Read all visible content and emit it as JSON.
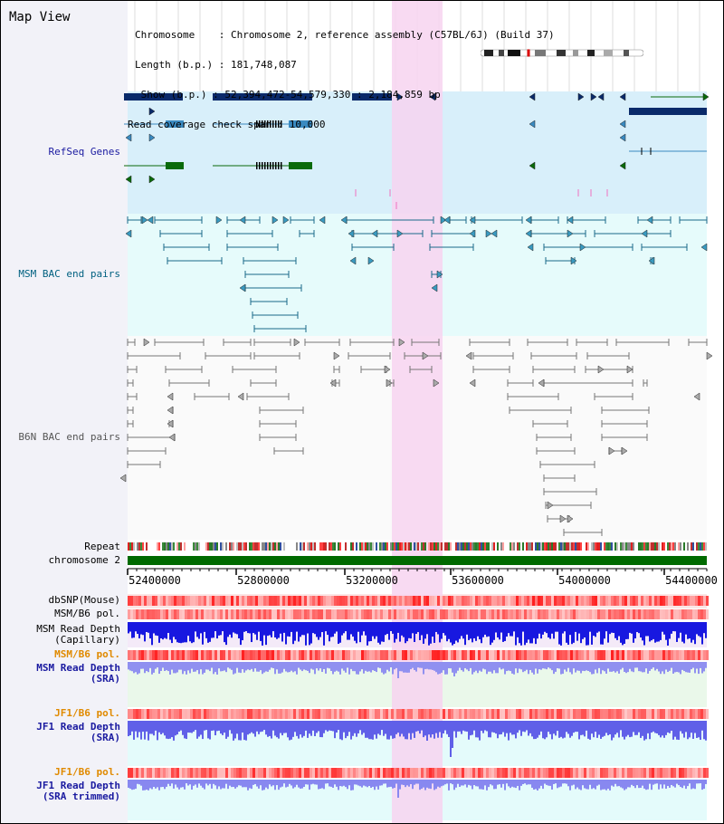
{
  "window_title": "Map View",
  "info": {
    "chromosome_label": "Chromosome    : Chromosome 2, reference assembly (C57BL/6J) (Build 37)",
    "length_label": "Length (b.p.) : 181,748,087",
    "show_label": " Show (b.p.) : 52,394,472-54,579,330 : 2,184,859 bp",
    "span_label": "Read coverage check span : 10,000"
  },
  "track_labels": {
    "refseq": "RefSeq Genes",
    "msm_bac": "MSM BAC end pairs",
    "b6n_bac": "B6N BAC end pairs",
    "repeat": "Repeat",
    "chromosome": "chromosome 2",
    "dbsnp": "dbSNP(Mouse)",
    "msm_b6_pol_1": "MSM/B6 pol.",
    "msm_read_depth_cap_1": "MSM Read Depth",
    "msm_read_depth_cap_2": "(Capillary)",
    "msm_b6_pol_2": "MSM/B6 pol.",
    "msm_read_depth_sra_1": "MSM Read Depth",
    "msm_read_depth_sra_2": "(SRA)",
    "jf1_b6_pol_1": "JF1/B6 pol.",
    "jf1_read_depth_sra_1": "JF1 Read Depth",
    "jf1_read_depth_sra_2": "(SRA)",
    "jf1_b6_pol_2": "JF1/B6 pol.",
    "jf1_read_depth_trim_1": "JF1 Read Depth",
    "jf1_read_depth_trim_2": "(SRA trimmed)"
  },
  "axis_ticks": [
    "52400000",
    "52800000",
    "53200000",
    "53600000",
    "54000000",
    "54400000"
  ],
  "colors": {
    "refseq_label": "#1a1aa0",
    "msm_label": "#006080",
    "b6n_label": "#555555",
    "orange_label": "#e08a00",
    "blue_label": "#1a1aa0",
    "highlight": "#f7d3f0"
  }
}
